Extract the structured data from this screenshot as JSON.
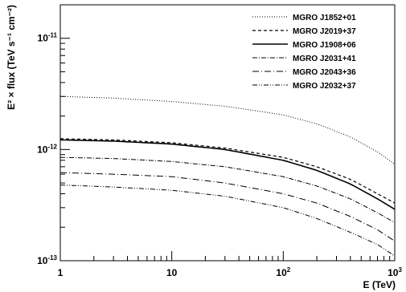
{
  "chart_data": {
    "type": "line",
    "title": "",
    "xlabel": "E (TeV)",
    "ylabel": "E² × flux (TeV s⁻¹ cm⁻²)",
    "xscale": "log",
    "yscale": "log",
    "xlim": [
      1,
      1000
    ],
    "ylim": [
      1e-13,
      2e-11
    ],
    "grid": false,
    "legend_position": "top-right",
    "x_ticks": [
      {
        "value": 1,
        "label": "1"
      },
      {
        "value": 10,
        "label": "10"
      },
      {
        "value": 100,
        "label": "10",
        "sup": "2"
      },
      {
        "value": 1000,
        "label": "10",
        "sup": "3"
      }
    ],
    "y_ticks": [
      {
        "value": 1e-13,
        "label": "10",
        "sup": "-13"
      },
      {
        "value": 1e-12,
        "label": "10",
        "sup": "-12"
      },
      {
        "value": 1e-11,
        "label": "10",
        "sup": "-11"
      }
    ],
    "series": [
      {
        "name": "MGRO J1852+01",
        "dash": "1,2",
        "width": 1,
        "x": [
          1,
          3,
          10,
          30,
          100,
          200,
          400,
          700,
          1000
        ],
        "y": [
          3e-12,
          2.9e-12,
          2.7e-12,
          2.45e-12,
          2.05e-12,
          1.7e-12,
          1.3e-12,
          9.5e-13,
          7.4e-13
        ]
      },
      {
        "name": "MGRO J2019+37",
        "dash": "4,3",
        "width": 1.2,
        "x": [
          1,
          3,
          10,
          30,
          100,
          200,
          400,
          700,
          1000
        ],
        "y": [
          1.25e-12,
          1.22e-12,
          1.15e-12,
          1.03e-12,
          8.5e-13,
          7e-13,
          5.4e-13,
          4e-13,
          3.3e-13
        ]
      },
      {
        "name": "MGRO J1908+06",
        "dash": "",
        "width": 1.6,
        "x": [
          1,
          3,
          10,
          30,
          100,
          200,
          400,
          700,
          1000
        ],
        "y": [
          1.22e-12,
          1.19e-12,
          1.12e-12,
          1e-12,
          8e-13,
          6.5e-13,
          4.9e-13,
          3.6e-13,
          2.9e-13
        ]
      },
      {
        "name": "MGRO J2031+41",
        "dash": "6,2,1,2",
        "width": 1,
        "x": [
          1,
          3,
          10,
          30,
          100,
          200,
          400,
          700,
          1000
        ],
        "y": [
          8.5e-13,
          8.3e-13,
          7.8e-13,
          7e-13,
          5.7e-13,
          4.7e-13,
          3.6e-13,
          2.7e-13,
          2.2e-13
        ]
      },
      {
        "name": "MGRO J2043+36",
        "dash": "8,3,1,3",
        "width": 1,
        "x": [
          1,
          3,
          10,
          30,
          100,
          200,
          400,
          700,
          1000
        ],
        "y": [
          6.2e-13,
          6e-13,
          5.7e-13,
          5e-13,
          4e-13,
          3.3e-13,
          2.5e-13,
          1.9e-13,
          1.5e-13
        ]
      },
      {
        "name": "MGRO J2032+37",
        "dash": "6,2,1,2,1,2",
        "width": 1,
        "x": [
          1,
          3,
          10,
          30,
          100,
          200,
          400,
          700,
          1000
        ],
        "y": [
          4.8e-13,
          4.6e-13,
          4.3e-13,
          3.8e-13,
          3e-13,
          2.4e-13,
          1.8e-13,
          1.4e-13,
          1.1e-13
        ]
      }
    ]
  }
}
